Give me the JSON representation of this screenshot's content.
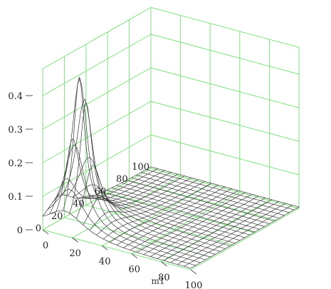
{
  "chart_data": {
    "type": "surface",
    "title": "",
    "z_tick_labels": [
      "0",
      "0.1",
      "0.2",
      "0.3",
      "0.4"
    ],
    "z_ticks": [
      0,
      0.1,
      0.2,
      0.3,
      0.4
    ],
    "zlim": [
      0,
      0.48
    ],
    "x_axis_label": "m1",
    "x_tick_labels": [
      "0",
      "20",
      "40",
      "60",
      "80",
      "100"
    ],
    "x_ticks": [
      0,
      20,
      40,
      60,
      80,
      100
    ],
    "y_tick_labels": [
      "0",
      "20",
      "40",
      "60",
      "80",
      "100"
    ],
    "y_ticks": [
      0,
      20,
      40,
      60,
      80,
      100
    ],
    "xlim": [
      0,
      100
    ],
    "ylim": [
      0,
      100
    ],
    "surface": {
      "description_peak": {
        "x": 15,
        "y": 15,
        "z": 0.46
      },
      "peak_width": 6.5
    },
    "colors": {
      "grid": "#7fe07f",
      "mesh": "#3a3a3a",
      "text": "#222222"
    }
  }
}
